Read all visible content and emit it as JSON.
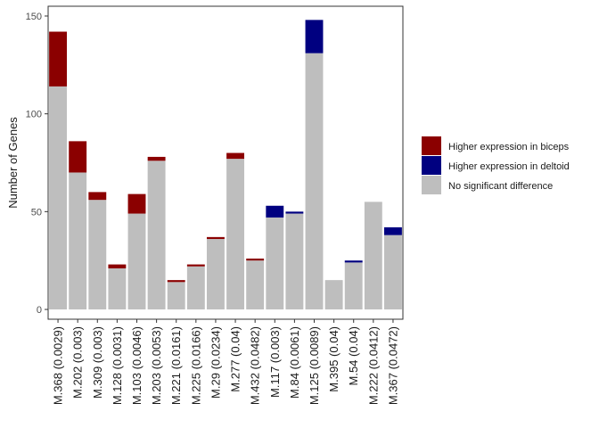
{
  "chart_data": {
    "type": "bar",
    "stacked": true,
    "categories": [
      "M.368 (0.0029)",
      "M.202 (0.003)",
      "M.309 (0.003)",
      "M.128 (0.0031)",
      "M.103 (0.0046)",
      "M.203 (0.0053)",
      "M.221 (0.0161)",
      "M.225 (0.0166)",
      "M.29 (0.0234)",
      "M.277 (0.04)",
      "M.432 (0.0482)",
      "M.117 (0.003)",
      "M.84 (0.0061)",
      "M.125 (0.0089)",
      "M.395 (0.04)",
      "M.54 (0.04)",
      "M.222 (0.0412)",
      "M.367 (0.0472)"
    ],
    "series": [
      {
        "name": "No significant difference",
        "color": "#bebebe",
        "values": [
          114,
          70,
          56,
          21,
          49,
          76,
          14,
          22,
          36,
          77,
          25,
          47,
          49,
          131,
          15,
          24,
          55,
          38
        ]
      },
      {
        "name": "Higher expression in biceps",
        "color": "#8b0000",
        "values": [
          28,
          16,
          4,
          2,
          10,
          2,
          1,
          1,
          1,
          3,
          1,
          0,
          0,
          0,
          0,
          0,
          0,
          0
        ]
      },
      {
        "name": "Higher expression in deltoid",
        "color": "#000080",
        "values": [
          0,
          0,
          0,
          0,
          0,
          0,
          0,
          0,
          0,
          0,
          0,
          6,
          1,
          17,
          0,
          1,
          0,
          4
        ]
      }
    ],
    "xlabel": "",
    "ylabel": "Number of Genes",
    "ylim": [
      -5,
      155
    ],
    "yticks": [
      0,
      50,
      100,
      150
    ],
    "grid": false,
    "legend": {
      "placement": "right",
      "entries": [
        {
          "label": "Higher expression in biceps",
          "color": "#8b0000"
        },
        {
          "label": "Higher expression in deltoid",
          "color": "#000080"
        },
        {
          "label": "No significant difference",
          "color": "#bebebe"
        }
      ]
    }
  }
}
